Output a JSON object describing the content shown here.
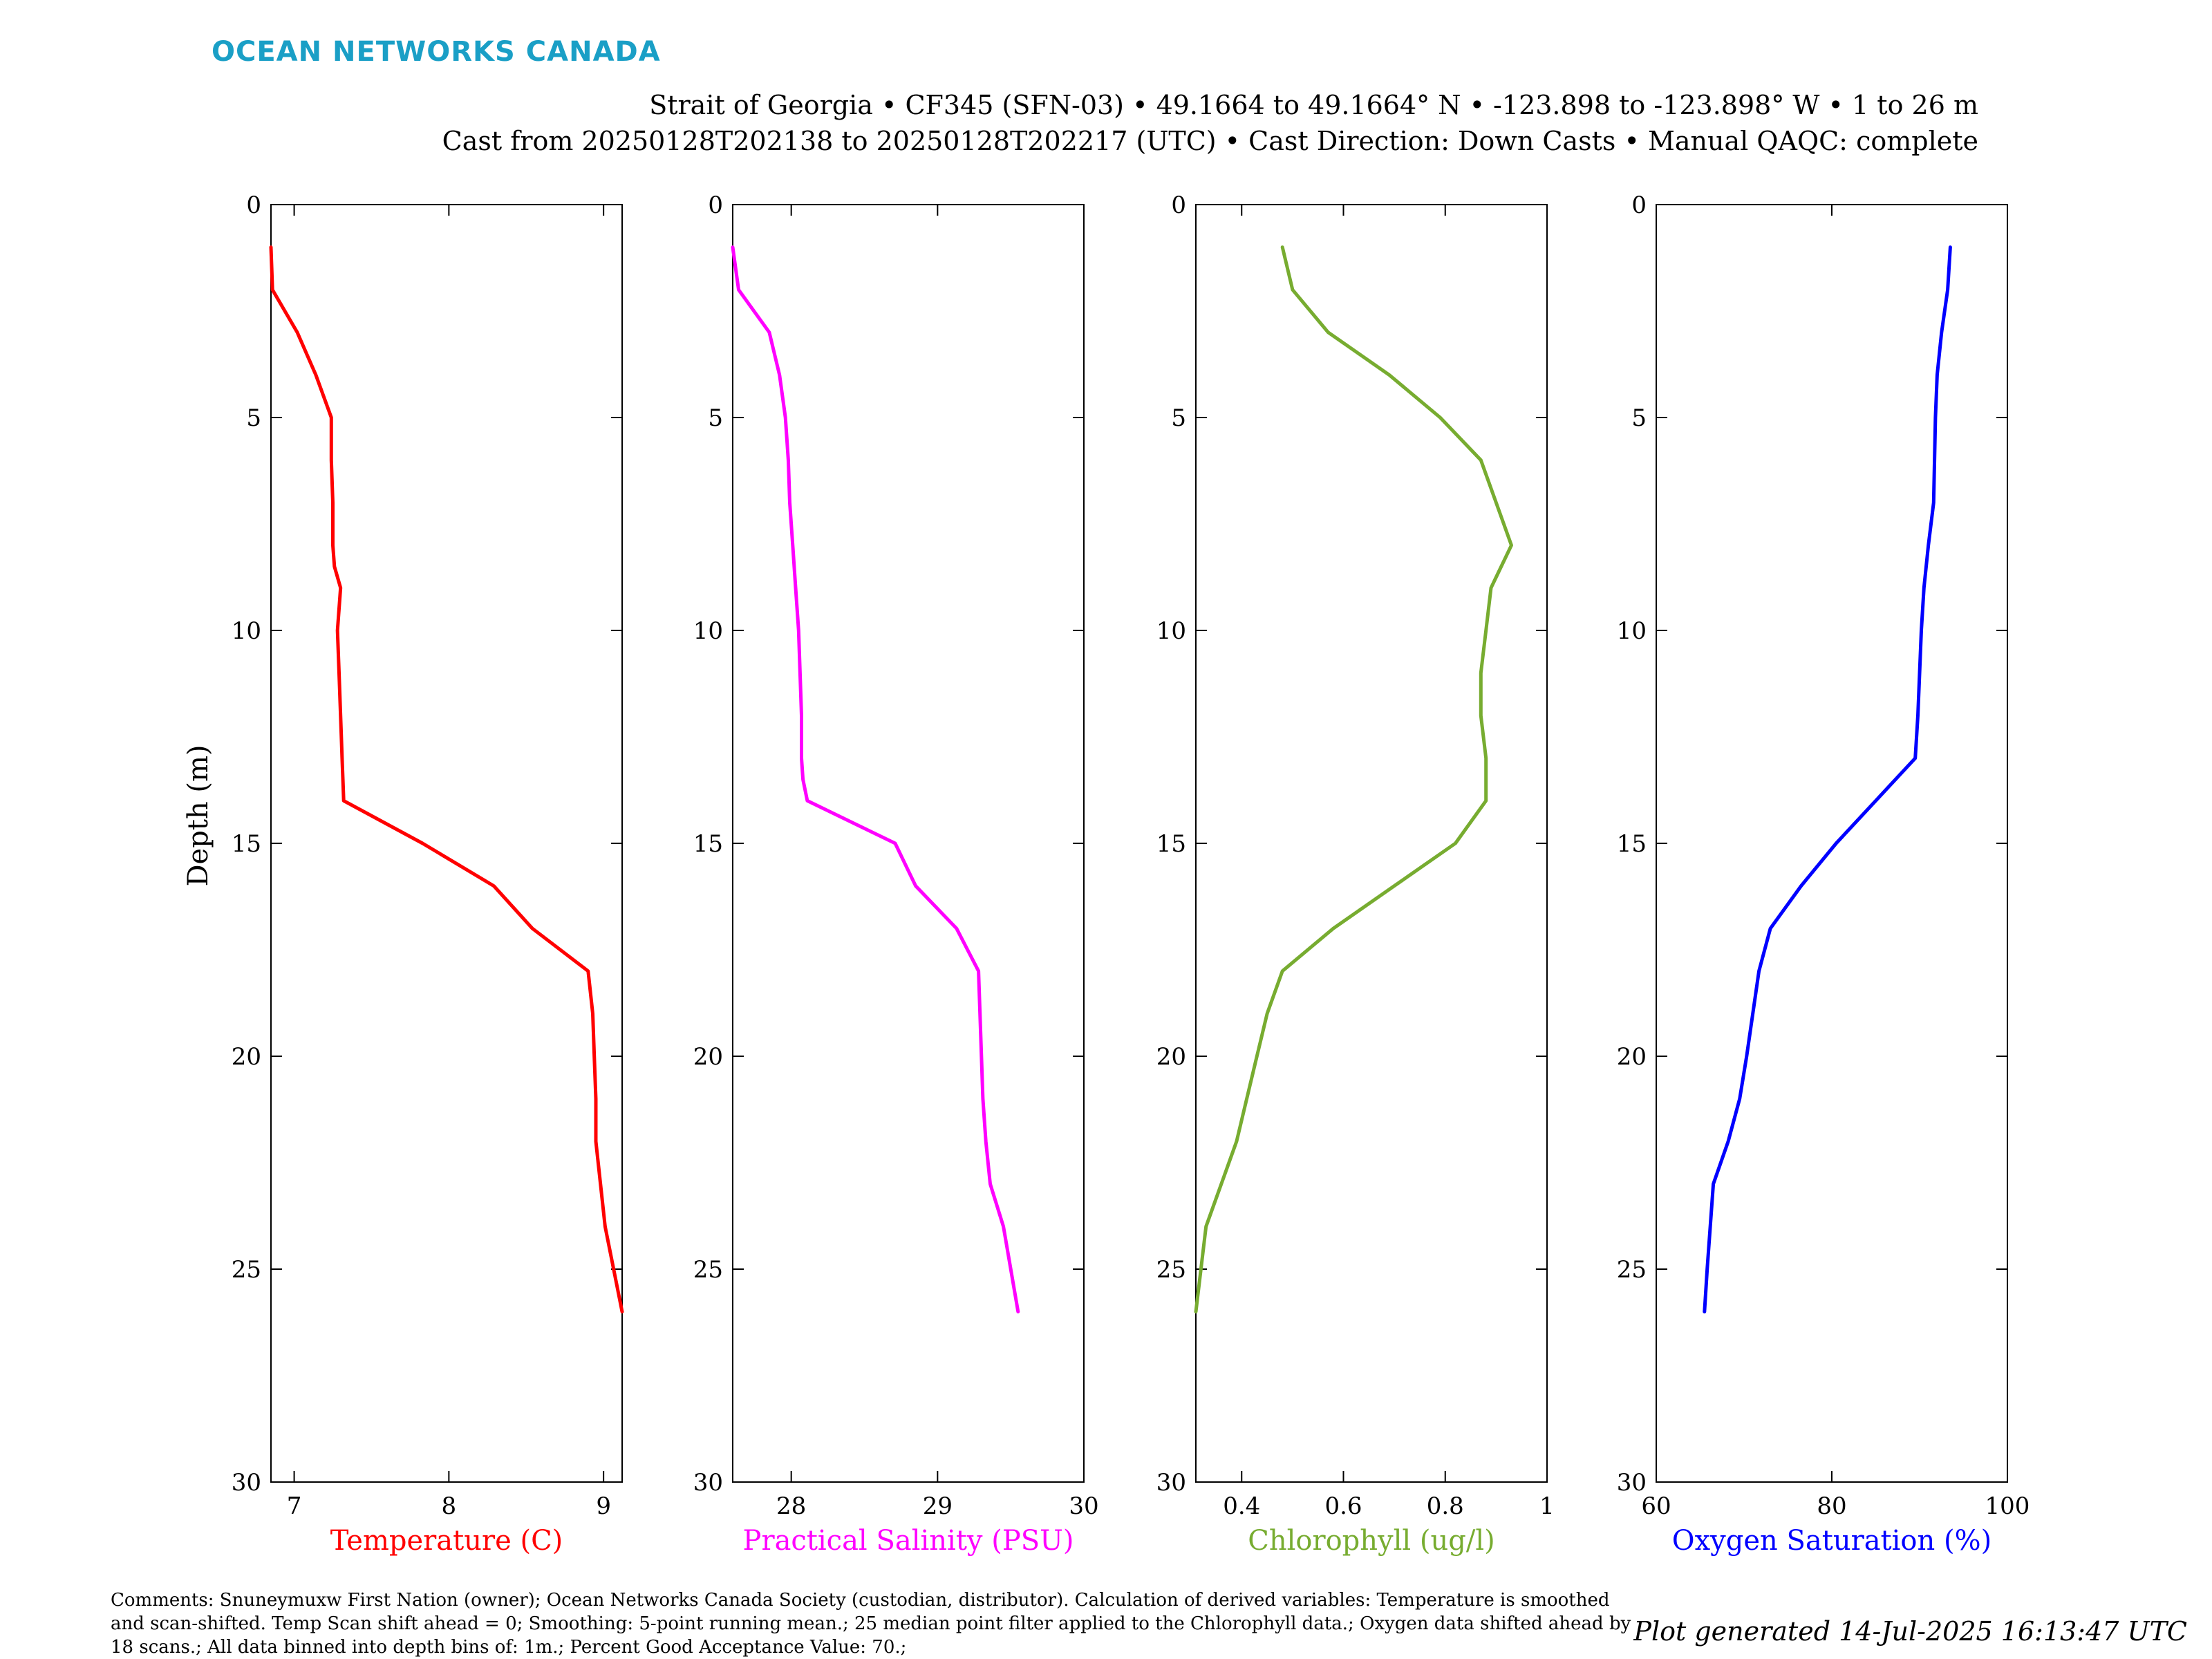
{
  "header": {
    "logo": "OCEAN NETWORKS CANADA",
    "line1": "Strait of Georgia • CF345 (SFN-03) • 49.1664 to 49.1664° N • -123.898 to -123.898° W • 1 to 26 m",
    "line2": "Cast from 20250128T202138 to 20250128T202217 (UTC) • Cast Direction: Down Casts • Manual QAQC: complete"
  },
  "footer": {
    "comments": "Comments: Snuneymuxw First Nation (owner); Ocean Networks Canada Society (custodian, distributor). Calculation of derived variables: Temperature is smoothed and scan-shifted. Temp Scan shift ahead = 0; Smoothing: 5-point running mean.; 25 median point filter applied to the Chlorophyll data.; Oxygen data shifted ahead by 18 scans.; All data binned into depth bins of: 1m.; Percent Good Acceptance Value: 70.;",
    "generated": "Plot generated 14-Jul-2025 16:13:47 UTC"
  },
  "chart_data": [
    {
      "type": "line",
      "xlabel": "Temperature (C)",
      "ylabel": "Depth (m)",
      "color": "#ff0000",
      "xlim": [
        6.85,
        9.12
      ],
      "xticks": [
        "7",
        "8",
        "9"
      ],
      "xtick_values": [
        7,
        8,
        9
      ],
      "ylim": [
        0,
        30
      ],
      "yticks": [
        "0",
        "5",
        "10",
        "15",
        "20",
        "25",
        "30"
      ],
      "y_reversed": true,
      "x": [
        6.85,
        6.86,
        7.02,
        7.14,
        7.24,
        7.24,
        7.25,
        7.25,
        7.26,
        7.3,
        7.28,
        7.29,
        7.3,
        7.31,
        7.32,
        7.83,
        8.29,
        8.54,
        8.9,
        8.93,
        8.94,
        8.95,
        8.95,
        8.98,
        9.01,
        9.12
      ],
      "y": [
        1,
        2,
        3,
        4,
        5,
        6,
        7,
        8,
        8.5,
        9,
        10,
        11,
        12,
        13,
        14,
        15,
        16,
        17,
        18,
        19,
        20,
        21,
        22,
        23,
        24,
        26
      ],
      "series": [
        {
          "name": "Temperature",
          "color": "#ff0000"
        }
      ]
    },
    {
      "type": "line",
      "xlabel": "Practical Salinity (PSU)",
      "ylabel": "",
      "color": "#ff00ff",
      "xlim": [
        27.6,
        30
      ],
      "xticks": [
        "28",
        "29",
        "30"
      ],
      "xtick_values": [
        28,
        29,
        30
      ],
      "ylim": [
        0,
        30
      ],
      "yticks": [
        "0",
        "5",
        "10",
        "15",
        "20",
        "25",
        "30"
      ],
      "y_reversed": true,
      "x": [
        27.6,
        27.64,
        27.85,
        27.92,
        27.96,
        27.98,
        27.99,
        28.01,
        28.03,
        28.05,
        28.06,
        28.07,
        28.07,
        28.08,
        28.11,
        28.71,
        28.85,
        29.13,
        29.28,
        29.29,
        29.3,
        29.31,
        29.33,
        29.36,
        29.45,
        29.55
      ],
      "y": [
        1,
        2,
        3,
        4,
        5,
        6,
        7,
        8,
        9,
        10,
        11,
        12,
        13,
        13.5,
        14,
        15,
        16,
        17,
        18,
        19,
        20,
        21,
        22,
        23,
        24,
        26
      ],
      "series": [
        {
          "name": "Practical Salinity",
          "color": "#ff00ff"
        }
      ]
    },
    {
      "type": "line",
      "xlabel": "Chlorophyll (ug/l)",
      "ylabel": "",
      "color": "#77ac30",
      "xlim": [
        0.31,
        1.0
      ],
      "xticks": [
        "0.4",
        "0.6",
        "0.8",
        "1"
      ],
      "xtick_values": [
        0.4,
        0.6,
        0.8,
        1.0
      ],
      "ylim": [
        0,
        30
      ],
      "yticks": [
        "0",
        "5",
        "10",
        "15",
        "20",
        "25",
        "30"
      ],
      "y_reversed": true,
      "x": [
        0.48,
        0.5,
        0.57,
        0.69,
        0.79,
        0.87,
        0.9,
        0.93,
        0.89,
        0.88,
        0.87,
        0.87,
        0.88,
        0.88,
        0.88,
        0.82,
        0.7,
        0.58,
        0.48,
        0.45,
        0.43,
        0.41,
        0.39,
        0.36,
        0.33,
        0.31
      ],
      "y": [
        1,
        2,
        3,
        4,
        5,
        6,
        7,
        8,
        9,
        10,
        11,
        12,
        13,
        13.5,
        14,
        15,
        16,
        17,
        18,
        19,
        20,
        21,
        22,
        23,
        24,
        26
      ],
      "series": [
        {
          "name": "Chlorophyll",
          "color": "#77ac30"
        }
      ]
    },
    {
      "type": "line",
      "xlabel": "Oxygen Saturation (%)",
      "ylabel": "",
      "color": "#0000ff",
      "xlim": [
        60,
        100
      ],
      "xticks": [
        "60",
        "80",
        "100"
      ],
      "xtick_values": [
        60,
        80,
        100
      ],
      "ylim": [
        0,
        30
      ],
      "yticks": [
        "0",
        "5",
        "10",
        "15",
        "20",
        "25",
        "30"
      ],
      "y_reversed": true,
      "x": [
        93.5,
        93.2,
        92.5,
        92.0,
        91.8,
        91.7,
        91.6,
        91.0,
        90.5,
        90.2,
        90.0,
        89.8,
        89.5,
        85.0,
        80.5,
        76.5,
        73.0,
        71.7,
        71.0,
        70.3,
        69.5,
        68.2,
        66.5,
        65.8,
        65.5
      ],
      "y": [
        1,
        2,
        3,
        4,
        5,
        6,
        7,
        8,
        9,
        10,
        11,
        12,
        13,
        14,
        15,
        16,
        17,
        18,
        19,
        20,
        21,
        22,
        23,
        25,
        26
      ],
      "series": [
        {
          "name": "Oxygen Saturation",
          "color": "#0000ff"
        }
      ]
    }
  ]
}
